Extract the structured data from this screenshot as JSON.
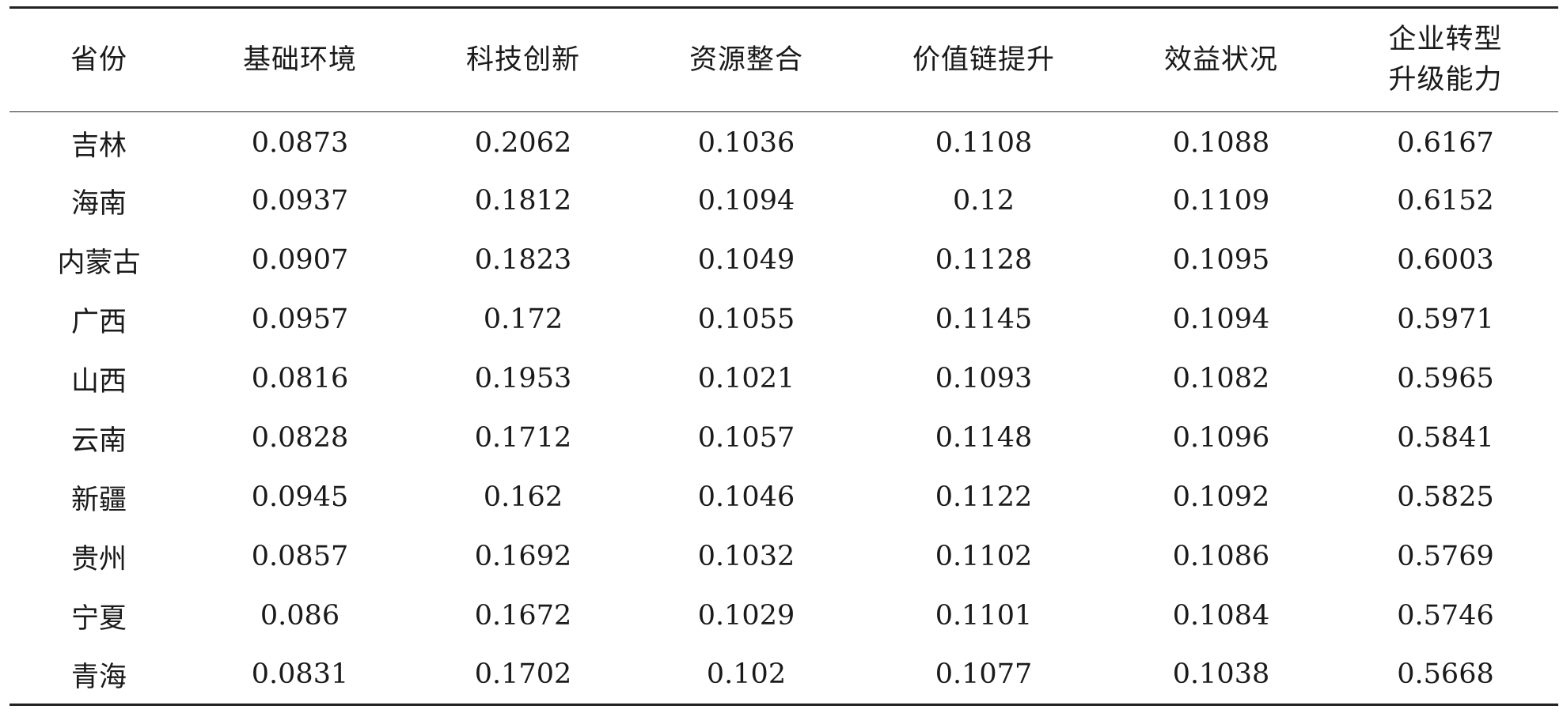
{
  "table": {
    "headers": [
      "省份",
      "基础环境",
      "科技创新",
      "资源整合",
      "价值链提升",
      "效益状况",
      "企业转型\n升级能力"
    ],
    "rows": [
      [
        "吉林",
        "0.0873",
        "0.2062",
        "0.1036",
        "0.1108",
        "0.1088",
        "0.6167"
      ],
      [
        "海南",
        "0.0937",
        "0.1812",
        "0.1094",
        "0.12",
        "0.1109",
        "0.6152"
      ],
      [
        "内蒙古",
        "0.0907",
        "0.1823",
        "0.1049",
        "0.1128",
        "0.1095",
        "0.6003"
      ],
      [
        "广西",
        "0.0957",
        "0.172",
        "0.1055",
        "0.1145",
        "0.1094",
        "0.5971"
      ],
      [
        "山西",
        "0.0816",
        "0.1953",
        "0.1021",
        "0.1093",
        "0.1082",
        "0.5965"
      ],
      [
        "云南",
        "0.0828",
        "0.1712",
        "0.1057",
        "0.1148",
        "0.1096",
        "0.5841"
      ],
      [
        "新疆",
        "0.0945",
        "0.162",
        "0.1046",
        "0.1122",
        "0.1092",
        "0.5825"
      ],
      [
        "贵州",
        "0.0857",
        "0.1692",
        "0.1032",
        "0.1102",
        "0.1086",
        "0.5769"
      ],
      [
        "宁夏",
        "0.086",
        "0.1672",
        "0.1029",
        "0.1101",
        "0.1084",
        "0.5746"
      ],
      [
        "青海",
        "0.0831",
        "0.1702",
        "0.102",
        "0.1077",
        "0.1038",
        "0.5668"
      ]
    ]
  }
}
